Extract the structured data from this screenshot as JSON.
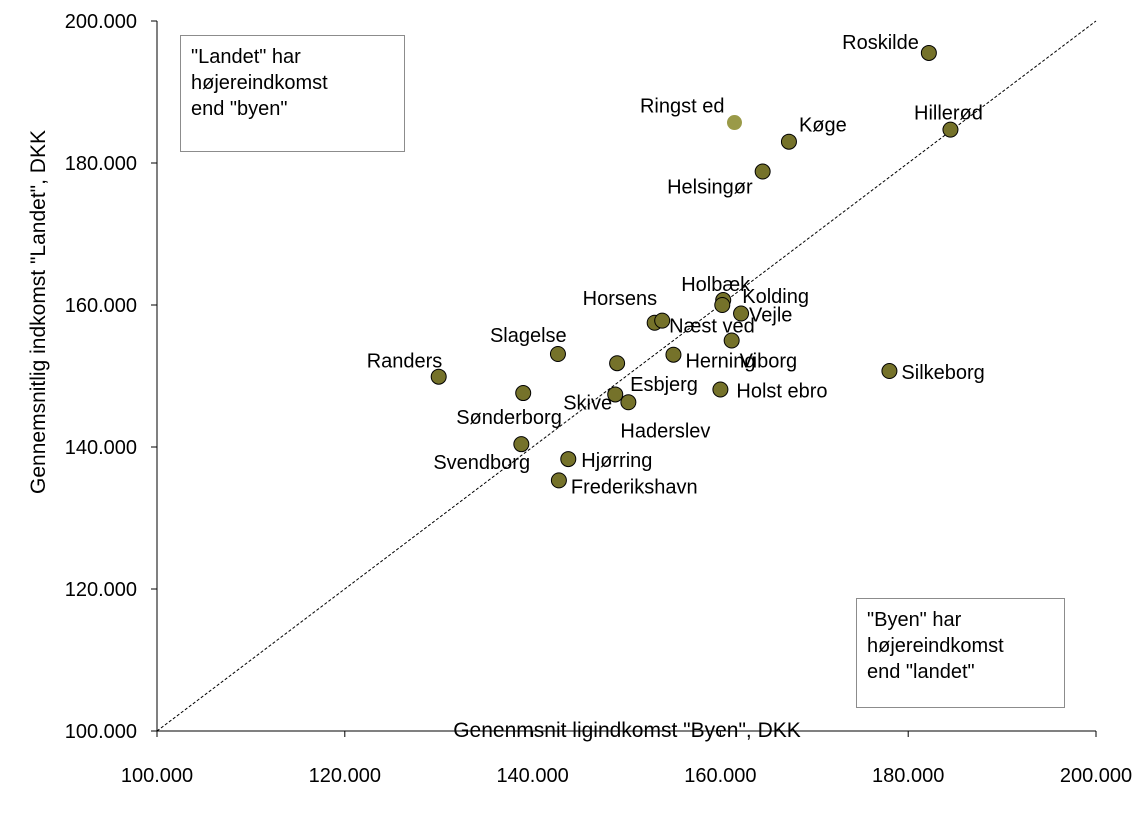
{
  "chart_data": {
    "type": "scatter",
    "xlabel": "Genenmsnit ligindkomst \"Byen\", DKK",
    "ylabel": "Gennemsnitlig indkomst \"Landet\", DKK",
    "xlim": [
      100000,
      200000
    ],
    "ylim": [
      100000,
      200000
    ],
    "x_ticks": [
      "100.000",
      "120.000",
      "140.000",
      "160.000",
      "180.000",
      "200.000"
    ],
    "y_ticks": [
      "100.000",
      "120.000",
      "140.000",
      "160.000",
      "180.000",
      "200.000"
    ],
    "grid": false,
    "reference_line": "diagonal (y = x), dashed",
    "marker_color": "#75722a",
    "highlight_color": "#9a9a48",
    "points": [
      {
        "label": "Roskilde",
        "x": 182200,
        "y": 195500
      },
      {
        "label": "Ringst ed",
        "x": 161500,
        "y": 185700
      },
      {
        "label": "Køge",
        "x": 167300,
        "y": 183000
      },
      {
        "label": "Hillerød",
        "x": 184500,
        "y": 184700
      },
      {
        "label": "Helsingør",
        "x": 164500,
        "y": 178800
      },
      {
        "label": "Holbæk",
        "x": 160300,
        "y": 160700
      },
      {
        "label": "Kolding",
        "x": 160200,
        "y": 160000
      },
      {
        "label": "Horsens",
        "x": 153000,
        "y": 157500
      },
      {
        "label": "Næst ved",
        "x": 153800,
        "y": 157800
      },
      {
        "label": "Vejle",
        "x": 162200,
        "y": 158800
      },
      {
        "label": "Viborg",
        "x": 161200,
        "y": 155000
      },
      {
        "label": "Slagelse",
        "x": 142700,
        "y": 153100
      },
      {
        "label": "Herning",
        "x": 155000,
        "y": 153000
      },
      {
        "label": "Esbjerg",
        "x": 149000,
        "y": 151800
      },
      {
        "label": "Randers",
        "x": 130000,
        "y": 149900
      },
      {
        "label": "Silkeborg",
        "x": 178000,
        "y": 150700
      },
      {
        "label": "Holst ebro",
        "x": 160000,
        "y": 148100
      },
      {
        "label": "Sønderborg",
        "x": 139000,
        "y": 147600
      },
      {
        "label": "Skive",
        "x": 148800,
        "y": 147400
      },
      {
        "label": "Haderslev",
        "x": 150200,
        "y": 146300
      },
      {
        "label": "Svendborg",
        "x": 138800,
        "y": 140400
      },
      {
        "label": "Hjørring",
        "x": 143800,
        "y": 138300
      },
      {
        "label": "Frederikshavn",
        "x": 142800,
        "y": 135300
      }
    ]
  },
  "notes": {
    "top_left": [
      "\"Landet\" har",
      "højereindkomst",
      "end \"byen\""
    ],
    "bottom_right": [
      "\"Byen\" har",
      "højereindkomst",
      "end \"landet\""
    ]
  }
}
